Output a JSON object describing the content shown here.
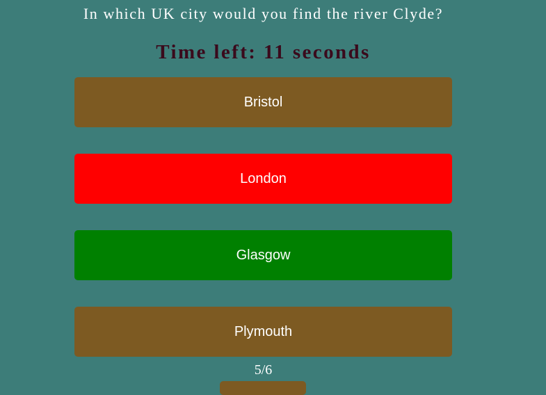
{
  "quiz": {
    "question": "In which UK city would you find the river Clyde?",
    "timer_prefix": "Time left: ",
    "time_left": "11",
    "timer_suffix": " seconds",
    "progress": "5/6",
    "options": [
      {
        "label": "Bristol",
        "state": "neutral",
        "color": "#7d5a22"
      },
      {
        "label": "London",
        "state": "wrong",
        "color": "#ff0000"
      },
      {
        "label": "Glasgow",
        "state": "correct",
        "color": "#008000"
      },
      {
        "label": "Plymouth",
        "state": "neutral",
        "color": "#7d5a22"
      }
    ]
  },
  "colors": {
    "background": "#3d7d79",
    "timer_text": "#3a0a1c",
    "neutral_option": "#7d5a22",
    "wrong_option": "#ff0000",
    "correct_option": "#008000"
  }
}
